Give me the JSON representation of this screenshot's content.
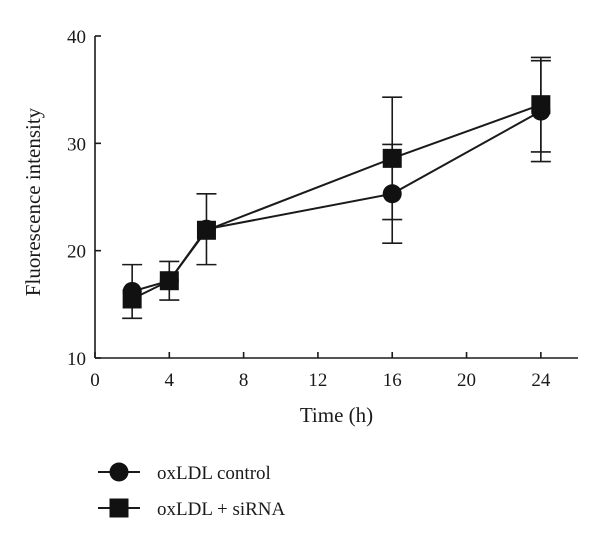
{
  "chart_data": {
    "type": "line",
    "xlabel": "Time (h)",
    "ylabel": "Fluorescence intensity",
    "xlim": [
      0,
      26
    ],
    "ylim": [
      10,
      40
    ],
    "xticks": [
      0,
      4,
      8,
      12,
      16,
      20,
      24
    ],
    "yticks": [
      10,
      20,
      30,
      40
    ],
    "x": [
      2,
      4,
      6,
      16,
      24
    ],
    "series": [
      {
        "name": "oxLDL control",
        "marker": "circle",
        "values": [
          16.2,
          17.2,
          22.0,
          25.3,
          33.0
        ],
        "error": [
          2.5,
          1.8,
          3.3,
          4.6,
          4.7
        ]
      },
      {
        "name": "oxLDL + siRNA",
        "marker": "square",
        "values": [
          15.5,
          17.2,
          21.9,
          28.6,
          33.6
        ],
        "error": [
          0,
          0,
          0,
          5.7,
          4.4
        ]
      }
    ],
    "legend_position": "bottom-left",
    "grid": false,
    "colors": {
      "line": "#1a1a1a",
      "marker": "#111111"
    }
  }
}
